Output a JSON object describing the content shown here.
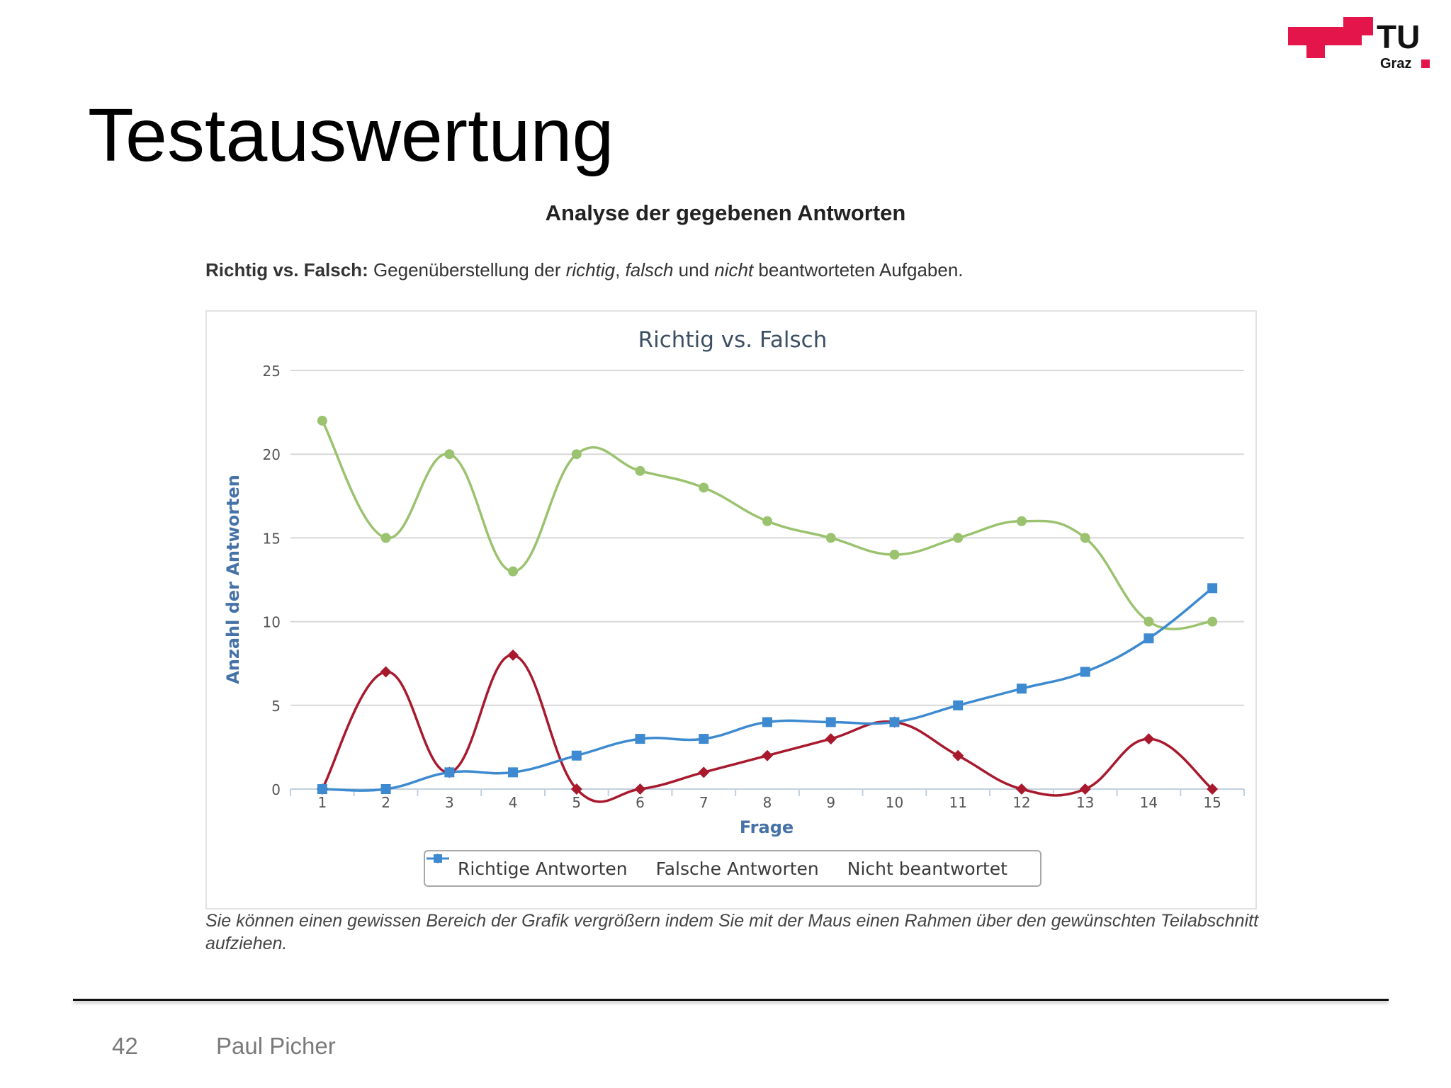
{
  "slide": {
    "title": "Testauswertung",
    "page_number": "42",
    "author": "Paul Picher"
  },
  "logo": {
    "text_top": "TU",
    "text_bottom": "Graz",
    "color": "#e4154b"
  },
  "content": {
    "section_title": "Analyse der gegebenen Antworten",
    "intro": {
      "label": "Richtig vs. Falsch:",
      "text_1": " Gegenüberstellung der ",
      "em_1": "richtig",
      "text_2": ", ",
      "em_2": "falsch",
      "text_3": " und ",
      "em_3": "nicht",
      "text_4": " beantworteten Aufgaben."
    },
    "caption": "Sie können einen gewissen Bereich der Grafik vergrößern indem Sie mit der Maus einen Rahmen über den gewünschten Teilabschnitt aufziehen."
  },
  "chart_data": {
    "type": "line",
    "title": "Richtig vs. Falsch",
    "xlabel": "Frage",
    "ylabel": "Anzahl der Antworten",
    "categories": [
      "1",
      "2",
      "3",
      "4",
      "5",
      "6",
      "7",
      "8",
      "9",
      "10",
      "11",
      "12",
      "13",
      "14",
      "15"
    ],
    "ylim": [
      0,
      25
    ],
    "yticks": [
      "0",
      "5",
      "10",
      "15",
      "20",
      "25"
    ],
    "grid": true,
    "legend": "bottom-center",
    "series": [
      {
        "name": "Richtige Antworten",
        "color": "#9bc26f",
        "marker": "circle",
        "values": [
          22,
          15,
          20,
          13,
          20,
          19,
          18,
          16,
          15,
          14,
          15,
          16,
          15,
          10,
          10
        ]
      },
      {
        "name": "Falsche Antworten",
        "color": "#a8192e",
        "marker": "diamond",
        "values": [
          0,
          7,
          1,
          8,
          0,
          0,
          1,
          2,
          3,
          4,
          2,
          0,
          0,
          3,
          0
        ]
      },
      {
        "name": "Nicht beantwortet",
        "color": "#3d8ad0",
        "marker": "square",
        "values": [
          0,
          0,
          1,
          1,
          2,
          3,
          3,
          4,
          4,
          4,
          5,
          6,
          7,
          9,
          12
        ]
      }
    ]
  }
}
